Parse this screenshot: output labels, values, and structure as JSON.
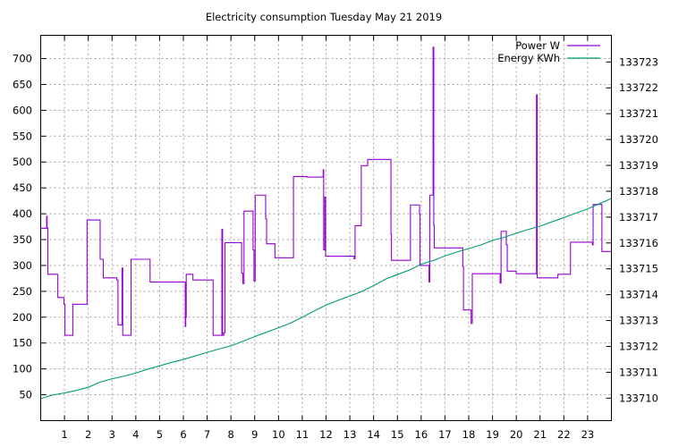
{
  "chart_data": {
    "type": "line",
    "title": "Electricity consumption Tuesday May 21 2019",
    "xlabel": "",
    "ylabel": "",
    "x_ticks": [
      1,
      2,
      3,
      4,
      5,
      6,
      7,
      8,
      9,
      10,
      11,
      12,
      13,
      14,
      15,
      16,
      17,
      18,
      19,
      20,
      21,
      22,
      23
    ],
    "xlim": [
      0,
      24
    ],
    "y_left_ticks": [
      50,
      100,
      150,
      200,
      250,
      300,
      350,
      400,
      450,
      500,
      550,
      600,
      650,
      700
    ],
    "ylim_left": [
      0,
      745
    ],
    "y_right_ticks": [
      133710,
      133711,
      133712,
      133713,
      133714,
      133715,
      133716,
      133717,
      133718,
      133719,
      133720,
      133721,
      133722,
      133723
    ],
    "ylim_right": [
      133709.13,
      133724.03
    ],
    "grid": true,
    "legend": "top-right",
    "series": [
      {
        "name": "Power W",
        "axis": "left",
        "color": "#9400d3",
        "step": true,
        "points": [
          [
            0.0,
            372
          ],
          [
            0.25,
            395
          ],
          [
            0.27,
            372
          ],
          [
            0.3,
            283
          ],
          [
            0.7,
            283
          ],
          [
            0.72,
            238
          ],
          [
            0.95,
            238
          ],
          [
            0.98,
            225
          ],
          [
            1.02,
            165
          ],
          [
            1.3,
            165
          ],
          [
            1.35,
            225
          ],
          [
            1.9,
            225
          ],
          [
            1.95,
            388
          ],
          [
            2.45,
            388
          ],
          [
            2.5,
            312
          ],
          [
            2.6,
            312
          ],
          [
            2.63,
            276
          ],
          [
            3.15,
            276
          ],
          [
            3.2,
            272
          ],
          [
            3.25,
            185
          ],
          [
            3.38,
            185
          ],
          [
            3.42,
            295
          ],
          [
            3.45,
            165
          ],
          [
            3.75,
            165
          ],
          [
            3.8,
            312
          ],
          [
            4.55,
            312
          ],
          [
            4.6,
            268
          ],
          [
            6.05,
            268
          ],
          [
            6.08,
            182
          ],
          [
            6.1,
            200
          ],
          [
            6.12,
            283
          ],
          [
            6.35,
            283
          ],
          [
            6.4,
            272
          ],
          [
            7.2,
            272
          ],
          [
            7.25,
            165
          ],
          [
            7.6,
            165
          ],
          [
            7.62,
            370
          ],
          [
            7.65,
            165
          ],
          [
            7.7,
            170
          ],
          [
            7.75,
            344
          ],
          [
            8.4,
            344
          ],
          [
            8.45,
            285
          ],
          [
            8.5,
            265
          ],
          [
            8.55,
            405
          ],
          [
            8.9,
            405
          ],
          [
            8.93,
            330
          ],
          [
            8.97,
            270
          ],
          [
            9.02,
            436
          ],
          [
            9.42,
            436
          ],
          [
            9.46,
            390
          ],
          [
            9.5,
            342
          ],
          [
            9.8,
            342
          ],
          [
            9.85,
            315
          ],
          [
            10.6,
            315
          ],
          [
            10.63,
            472
          ],
          [
            11.15,
            472
          ],
          [
            11.2,
            471
          ],
          [
            11.85,
            471
          ],
          [
            11.88,
            485
          ],
          [
            11.9,
            330
          ],
          [
            11.95,
            432
          ],
          [
            11.98,
            318
          ],
          [
            12.02,
            318
          ],
          [
            13.15,
            318
          ],
          [
            13.18,
            313
          ],
          [
            13.22,
            377
          ],
          [
            13.45,
            377
          ],
          [
            13.48,
            493
          ],
          [
            13.7,
            493
          ],
          [
            13.75,
            505
          ],
          [
            14.7,
            505
          ],
          [
            14.73,
            360
          ],
          [
            14.75,
            310
          ],
          [
            15.5,
            310
          ],
          [
            15.55,
            417
          ],
          [
            15.9,
            417
          ],
          [
            15.93,
            400
          ],
          [
            15.95,
            300
          ],
          [
            16.3,
            300
          ],
          [
            16.33,
            268
          ],
          [
            16.36,
            436
          ],
          [
            16.48,
            436
          ],
          [
            16.5,
            722
          ],
          [
            16.53,
            378
          ],
          [
            16.55,
            334
          ],
          [
            17.2,
            334
          ],
          [
            17.26,
            334
          ],
          [
            17.7,
            334
          ],
          [
            17.75,
            298
          ],
          [
            17.78,
            214
          ],
          [
            18.05,
            214
          ],
          [
            18.1,
            188
          ],
          [
            18.15,
            284
          ],
          [
            19.3,
            284
          ],
          [
            19.32,
            266
          ],
          [
            19.36,
            366
          ],
          [
            19.55,
            366
          ],
          [
            19.58,
            340
          ],
          [
            19.62,
            289
          ],
          [
            19.95,
            289
          ],
          [
            20.0,
            284
          ],
          [
            20.82,
            284
          ],
          [
            20.85,
            630
          ],
          [
            20.88,
            276
          ],
          [
            21.7,
            276
          ],
          [
            21.75,
            283
          ],
          [
            22.25,
            283
          ],
          [
            22.28,
            345
          ],
          [
            23.15,
            345
          ],
          [
            23.2,
            340
          ],
          [
            23.23,
            418
          ],
          [
            23.55,
            418
          ],
          [
            23.6,
            327
          ],
          [
            24.0,
            327
          ]
        ]
      },
      {
        "name": "Energy KWh",
        "axis": "right",
        "color": "#009e73",
        "step": false,
        "points": [
          [
            0.0,
            133709.98
          ],
          [
            0.5,
            133710.12
          ],
          [
            1.0,
            133710.2
          ],
          [
            1.5,
            133710.3
          ],
          [
            2.0,
            133710.42
          ],
          [
            2.5,
            133710.62
          ],
          [
            3.0,
            133710.75
          ],
          [
            3.5,
            133710.85
          ],
          [
            4.0,
            133710.97
          ],
          [
            4.5,
            133711.12
          ],
          [
            5.0,
            133711.25
          ],
          [
            5.5,
            133711.38
          ],
          [
            6.0,
            133711.5
          ],
          [
            6.5,
            133711.63
          ],
          [
            7.0,
            133711.77
          ],
          [
            7.5,
            133711.9
          ],
          [
            8.0,
            133712.02
          ],
          [
            8.5,
            133712.2
          ],
          [
            9.0,
            133712.38
          ],
          [
            9.5,
            133712.55
          ],
          [
            10.0,
            133712.72
          ],
          [
            10.5,
            133712.9
          ],
          [
            11.0,
            133713.13
          ],
          [
            11.5,
            133713.37
          ],
          [
            12.0,
            133713.6
          ],
          [
            12.5,
            133713.78
          ],
          [
            13.0,
            133713.95
          ],
          [
            13.5,
            133714.12
          ],
          [
            14.0,
            133714.35
          ],
          [
            14.5,
            133714.6
          ],
          [
            15.0,
            133714.78
          ],
          [
            15.5,
            133714.95
          ],
          [
            16.0,
            133715.18
          ],
          [
            16.5,
            133715.32
          ],
          [
            17.0,
            133715.5
          ],
          [
            17.5,
            133715.65
          ],
          [
            18.0,
            133715.78
          ],
          [
            18.5,
            133715.92
          ],
          [
            19.0,
            133716.1
          ],
          [
            19.5,
            133716.22
          ],
          [
            20.0,
            133716.38
          ],
          [
            20.5,
            133716.52
          ],
          [
            21.0,
            133716.65
          ],
          [
            21.5,
            133716.82
          ],
          [
            22.0,
            133716.98
          ],
          [
            22.5,
            133717.15
          ],
          [
            23.0,
            133717.32
          ],
          [
            23.5,
            133717.52
          ],
          [
            24.0,
            133717.72
          ]
        ]
      }
    ]
  }
}
